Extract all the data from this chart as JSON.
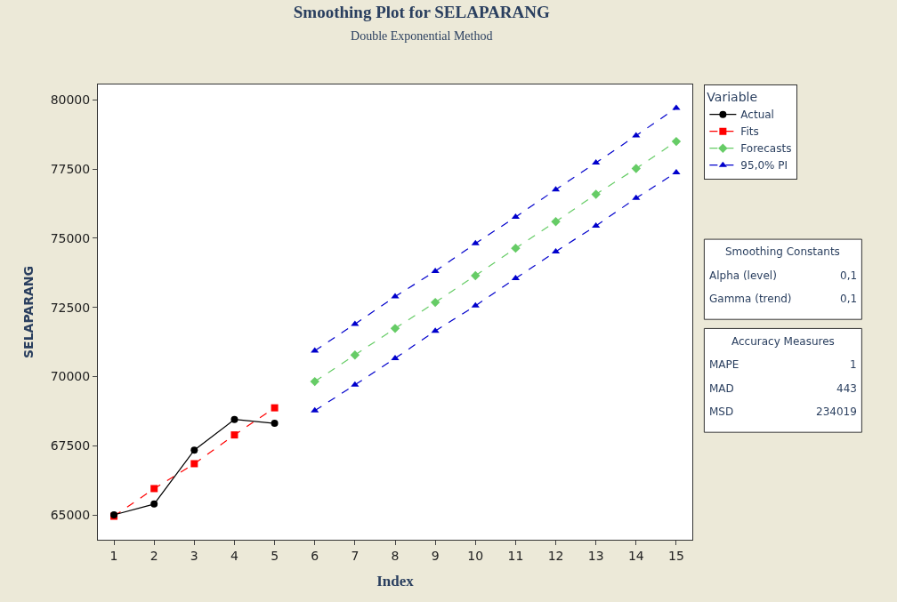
{
  "chart_data": {
    "type": "line",
    "title": "Smoothing Plot for SELAPARANG",
    "subtitle": "Double Exponential Method",
    "xlabel": "Index",
    "ylabel": "SELAPARANG",
    "legend_title": "Variable",
    "legend": "right",
    "xlim": [
      0.6,
      15.4
    ],
    "xticks": [
      1,
      2,
      3,
      4,
      5,
      6,
      7,
      8,
      9,
      10,
      11,
      12,
      13,
      14,
      15
    ],
    "ylim": [
      64100,
      80560
    ],
    "yticks": [
      65000,
      67500,
      70000,
      72500,
      75000,
      77500,
      80000
    ],
    "series": [
      {
        "name": "Actual",
        "color": "#000000",
        "marker": "circle",
        "line_style": "solid",
        "x": [
          1,
          2,
          3,
          4,
          5
        ],
        "values": [
          65000,
          65390,
          67340,
          68450,
          68310
        ]
      },
      {
        "name": "Fits",
        "color": "#ff0000",
        "marker": "square",
        "line_style": "dashed",
        "x": [
          1,
          2,
          3,
          4,
          5
        ],
        "values": [
          64950,
          65950,
          66850,
          67890,
          68870
        ]
      },
      {
        "name": "Forecasts",
        "color": "#66cc66",
        "marker": "diamond",
        "line_style": "dashed",
        "x": [
          6,
          7,
          8,
          9,
          10,
          11,
          12,
          13,
          14,
          15
        ],
        "values": [
          69820,
          70780,
          71740,
          72680,
          73650,
          74640,
          75600,
          76590,
          77520,
          78500
        ]
      },
      {
        "name": "95,0% PI",
        "color": "#0000cc",
        "marker": "triangle",
        "line_style": "dashed",
        "x": [
          6,
          7,
          8,
          9,
          10,
          11,
          12,
          13,
          14,
          15
        ],
        "values": [
          70930,
          71900,
          72890,
          73810,
          74810,
          75770,
          76760,
          77730,
          78710,
          79710
        ]
      },
      {
        "color": "#0000cc",
        "marker": "triangle",
        "line_style": "dashed",
        "x": [
          6,
          7,
          8,
          9,
          10,
          11,
          12,
          13,
          14,
          15
        ],
        "values": [
          68770,
          69700,
          70660,
          71650,
          72560,
          73550,
          74520,
          75450,
          76450,
          77380
        ]
      }
    ],
    "annotations": [
      "Smoothing Constants",
      "Alpha (level)",
      "0,1",
      "Gamma (trend)",
      "0,1",
      "Accuracy Measures",
      "MAPE",
      "1",
      "MAD",
      "443",
      "MSD",
      "234019"
    ]
  }
}
